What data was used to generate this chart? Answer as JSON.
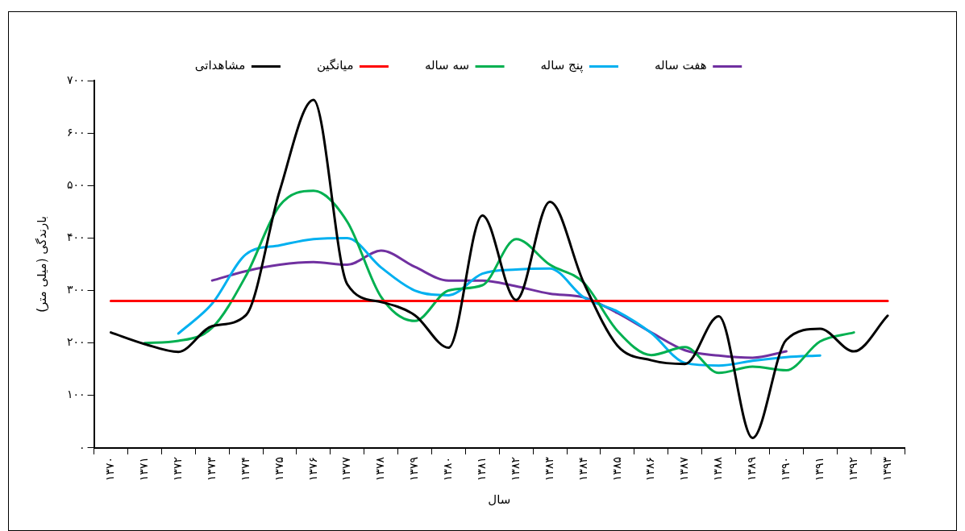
{
  "chart_data": {
    "type": "line",
    "xlabel": "سال",
    "ylabel": "بارندگی (میلی متر)",
    "categories": [
      "۱۳۷۰",
      "۱۳۷۱",
      "۱۳۷۲",
      "۱۳۷۳",
      "۱۳۷۴",
      "۱۳۷۵",
      "۱۳۷۶",
      "۱۳۷۷",
      "۱۳۷۸",
      "۱۳۷۹",
      "۱۳۸۰",
      "۱۳۸۱",
      "۱۳۸۲",
      "۱۳۸۳",
      "۱۳۸۴",
      "۱۳۸۵",
      "۱۳۸۶",
      "۱۳۸۷",
      "۱۳۸۸",
      "۱۳۸۹",
      "۱۳۹۰",
      "۱۳۹۱",
      "۱۳۹۲",
      "۱۳۹۳"
    ],
    "series": [
      {
        "name": "مشاهداتی",
        "color": "#000000",
        "values": [
          220,
          198,
          183,
          232,
          253,
          490,
          663,
          312,
          278,
          253,
          191,
          443,
          282,
          469,
          315,
          195,
          167,
          160,
          251,
          19,
          206,
          227,
          184,
          252
        ]
      },
      {
        "name": "میانگین",
        "color": "#ff0000",
        "values": [
          280,
          280,
          280,
          280,
          280,
          280,
          280,
          280,
          280,
          280,
          280,
          280,
          280,
          280,
          280,
          280,
          280,
          280,
          280,
          280,
          280,
          280,
          280,
          280
        ]
      },
      {
        "name": "سه ساله",
        "color": "#00b050",
        "values": [
          null,
          200,
          204,
          229,
          328,
          462,
          490,
          431,
          288,
          242,
          300,
          310,
          398,
          349,
          315,
          223,
          177,
          192,
          143,
          155,
          148,
          203,
          220,
          null
        ]
      },
      {
        "name": "پنج ساله",
        "color": "#00b0f0",
        "values": [
          null,
          null,
          218,
          275,
          369,
          386,
          398,
          400,
          344,
          300,
          291,
          332,
          340,
          342,
          287,
          260,
          219,
          162,
          157,
          166,
          173,
          176,
          null,
          null
        ]
      },
      {
        "name": "هفت ساله",
        "color": "#7030a0",
        "values": [
          null,
          null,
          null,
          319,
          337,
          349,
          354,
          349,
          376,
          345,
          319,
          319,
          308,
          294,
          287,
          257,
          220,
          186,
          176,
          172,
          184,
          null,
          null,
          null
        ]
      }
    ],
    "ylim": [
      0,
      700
    ],
    "yticks": [
      {
        "value": 0,
        "label": "۰"
      },
      {
        "value": 100,
        "label": "۱۰۰"
      },
      {
        "value": 200,
        "label": "۲۰۰"
      },
      {
        "value": 300,
        "label": "۳۰۰"
      },
      {
        "value": 400,
        "label": "۴۰۰"
      },
      {
        "value": 500,
        "label": "۵۰۰"
      },
      {
        "value": 600,
        "label": "۶۰۰"
      },
      {
        "value": 700,
        "label": "۷۰۰"
      }
    ],
    "grid": false,
    "legend": "top",
    "marker": "none",
    "line_style": "solid"
  }
}
